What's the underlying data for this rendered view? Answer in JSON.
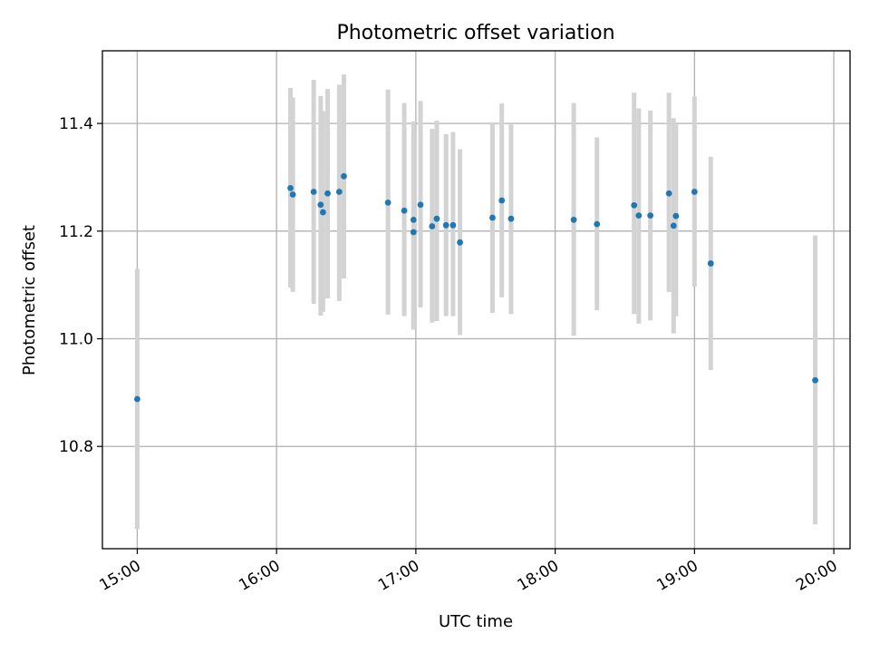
{
  "chart_data": {
    "type": "scatter",
    "title": "Photometric offset variation",
    "xlabel": "UTC time",
    "ylabel": "Photometric offset",
    "x_ticks": [
      "15:00",
      "16:00",
      "17:00",
      "18:00",
      "19:00",
      "20:00"
    ],
    "y_ticks": [
      "10.8",
      "11.0",
      "11.2",
      "11.4"
    ],
    "y_tick_values": [
      10.8,
      11.0,
      11.2,
      11.4
    ],
    "xlim": [
      "14:45",
      "20:07"
    ],
    "ylim": [
      10.61,
      11.535
    ],
    "grid": true,
    "colors": {
      "marker": "#1f77b4",
      "errorbar": "#d3d3d3",
      "grid": "#b0b0b0"
    },
    "series": [
      {
        "x": [
          "15:00",
          "16:06",
          "16:07",
          "16:16",
          "16:19",
          "16:20",
          "16:22",
          "16:27",
          "16:29",
          "16:48",
          "16:55",
          "16:59",
          "16:59",
          "17:02",
          "17:07",
          "17:09",
          "17:13",
          "17:16",
          "17:19",
          "17:33",
          "17:37",
          "17:41",
          "18:08",
          "18:18",
          "18:34",
          "18:36",
          "18:41",
          "18:49",
          "18:51",
          "18:52",
          "19:00",
          "19:07",
          "19:52"
        ],
        "y": [
          10.888,
          11.28,
          11.268,
          11.273,
          11.249,
          11.235,
          11.27,
          11.273,
          11.302,
          11.253,
          11.238,
          11.221,
          11.198,
          11.249,
          11.209,
          11.223,
          11.211,
          11.211,
          11.179,
          11.225,
          11.257,
          11.223,
          11.221,
          11.213,
          11.248,
          11.229,
          11.229,
          11.27,
          11.21,
          11.228,
          11.273,
          11.14,
          10.923
        ],
        "ylow": [
          10.647,
          11.095,
          11.087,
          11.065,
          11.043,
          11.05,
          11.075,
          11.07,
          11.112,
          11.045,
          11.042,
          11.02,
          11.017,
          11.058,
          11.03,
          11.033,
          11.042,
          11.042,
          11.007,
          11.048,
          11.077,
          11.046,
          11.006,
          11.053,
          11.046,
          11.028,
          11.034,
          11.087,
          11.01,
          11.042,
          11.097,
          10.942,
          10.655
        ],
        "yhigh": [
          11.13,
          11.466,
          11.448,
          11.481,
          11.451,
          11.423,
          11.464,
          11.472,
          11.491,
          11.463,
          11.438,
          11.404,
          11.383,
          11.442,
          11.39,
          11.405,
          11.38,
          11.384,
          11.352,
          11.402,
          11.437,
          11.398,
          11.438,
          11.374,
          11.457,
          11.428,
          11.424,
          11.457,
          11.41,
          11.398,
          11.45,
          11.338,
          11.192
        ]
      }
    ]
  }
}
